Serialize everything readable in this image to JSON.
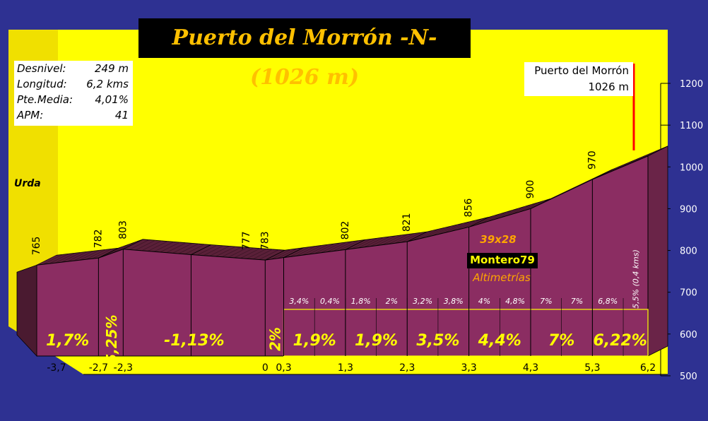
{
  "title": "Puerto del Morrón -N- (1026 m)",
  "stats": [
    {
      "label": "Desnivel:",
      "value": "249 m"
    },
    {
      "label": "Longitud:",
      "value": "6,2 kms"
    },
    {
      "label": "Pte.Media:",
      "value": "4,01%"
    },
    {
      "label": "APM:",
      "value": "41"
    }
  ],
  "summit": {
    "name": "Puerto del Morrón",
    "altitude": "1026 m"
  },
  "start_name": "Urda",
  "credits": {
    "ratio": "39x28",
    "author": "Montero79",
    "source": "Altimetrías"
  },
  "colors": {
    "background": "#2e3192",
    "wall": "#ffff00",
    "profile_front": "#8b2d62",
    "profile_top": "#5a2038",
    "text_yellow": "#ffff00",
    "summit_marker": "#ff0000"
  },
  "chart_data": {
    "type": "area",
    "xlabel": "",
    "ylabel": "",
    "ylim": [
      500,
      1200
    ],
    "xlim": [
      -3.7,
      6.2
    ],
    "y_ticks": [
      "500",
      "600",
      "700",
      "800",
      "900",
      "1000",
      "1100",
      "1200"
    ],
    "x_ticks": [
      "-3,7",
      "-2,7",
      "-2,3",
      "0",
      "0,3",
      "1,3",
      "2,3",
      "3,3",
      "4,3",
      "5,3",
      "6,2"
    ],
    "profile": [
      {
        "x": -3.7,
        "y": 765
      },
      {
        "x": -2.7,
        "y": 782
      },
      {
        "x": -2.3,
        "y": 803
      },
      {
        "x": -1.2,
        "y": 790
      },
      {
        "x": 0.0,
        "y": 777
      },
      {
        "x": 0.3,
        "y": 783
      },
      {
        "x": 1.3,
        "y": 802
      },
      {
        "x": 2.3,
        "y": 821
      },
      {
        "x": 3.3,
        "y": 856
      },
      {
        "x": 4.3,
        "y": 900
      },
      {
        "x": 5.3,
        "y": 970
      },
      {
        "x": 6.2,
        "y": 1026
      }
    ],
    "altitude_labels": [
      {
        "x": -3.7,
        "text": "765"
      },
      {
        "x": -2.7,
        "text": "782"
      },
      {
        "x": -2.3,
        "text": "803"
      },
      {
        "x": -0.3,
        "text": "777"
      },
      {
        "x": 0.0,
        "text": "783"
      },
      {
        "x": 1.3,
        "text": "802"
      },
      {
        "x": 2.3,
        "text": "821"
      },
      {
        "x": 3.3,
        "text": "856"
      },
      {
        "x": 4.3,
        "text": "900"
      },
      {
        "x": 5.3,
        "text": "970"
      }
    ],
    "segments": [
      {
        "from": -3.7,
        "to": -2.7,
        "text": "1,7%",
        "vertical": false
      },
      {
        "from": -2.7,
        "to": -2.3,
        "text": "5,25%",
        "vertical": true
      },
      {
        "from": -2.3,
        "to": 0.0,
        "text": "-1,13%",
        "vertical": false
      },
      {
        "from": 0.0,
        "to": 0.3,
        "text": "2%",
        "vertical": true
      },
      {
        "from": 0.3,
        "to": 1.3,
        "text": "1,9%",
        "vertical": false
      },
      {
        "from": 1.3,
        "to": 2.3,
        "text": "1,9%",
        "vertical": false
      },
      {
        "from": 2.3,
        "to": 3.3,
        "text": "3,5%",
        "vertical": false
      },
      {
        "from": 3.3,
        "to": 4.3,
        "text": "4,4%",
        "vertical": false
      },
      {
        "from": 4.3,
        "to": 5.3,
        "text": "7%",
        "vertical": false
      },
      {
        "from": 5.3,
        "to": 6.2,
        "text": "6,22%",
        "vertical": false
      }
    ],
    "sub_segments": [
      {
        "from": 0.3,
        "to": 0.8,
        "text": "3,4%"
      },
      {
        "from": 0.8,
        "to": 1.3,
        "text": "0,4%"
      },
      {
        "from": 1.3,
        "to": 1.8,
        "text": "1,8%"
      },
      {
        "from": 1.8,
        "to": 2.3,
        "text": "2%"
      },
      {
        "from": 2.3,
        "to": 2.8,
        "text": "3,2%"
      },
      {
        "from": 2.8,
        "to": 3.3,
        "text": "3,8%"
      },
      {
        "from": 3.3,
        "to": 3.8,
        "text": "4%"
      },
      {
        "from": 3.8,
        "to": 4.3,
        "text": "4,8%"
      },
      {
        "from": 4.3,
        "to": 4.8,
        "text": "7%"
      },
      {
        "from": 4.8,
        "to": 5.3,
        "text": "7%"
      },
      {
        "from": 5.3,
        "to": 5.8,
        "text": "6,8%"
      },
      {
        "from": 5.8,
        "to": 6.2,
        "text": "5,5% (0,4 kms)",
        "vertical": true
      }
    ]
  }
}
